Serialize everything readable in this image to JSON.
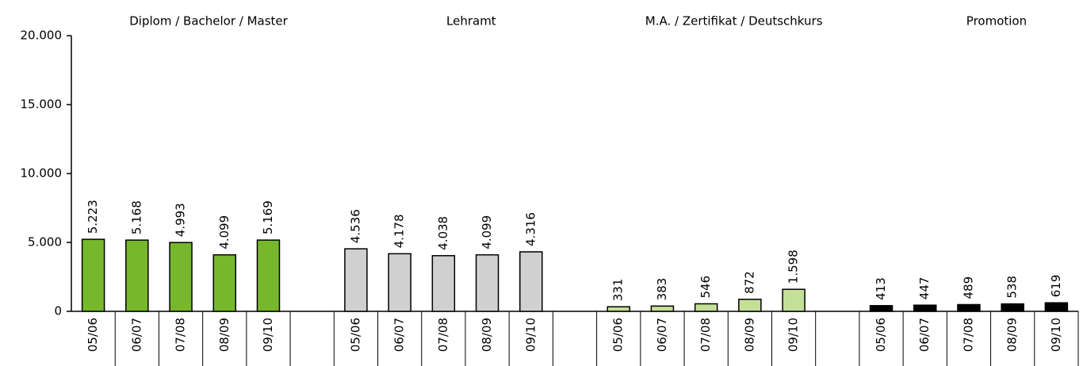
{
  "chart_data": {
    "type": "bar",
    "ylim": [
      0,
      20000
    ],
    "yticks": [
      0,
      {
        "value": 5000,
        "label": "5.000"
      },
      {
        "value": 10000,
        "label": "10.000"
      },
      {
        "value": 15000,
        "label": "15.000"
      },
      {
        "value": 20000,
        "label": "20.000"
      }
    ],
    "groups": [
      {
        "name": "Diplom / Bachelor / Master",
        "color": "#76b82a",
        "categories": [
          "05/06",
          "06/07",
          "07/08",
          "08/09",
          "09/10"
        ],
        "values": [
          5223,
          5168,
          4993,
          4099,
          5169
        ],
        "value_labels": [
          "5.223",
          "5.168",
          "4.993",
          "4.099",
          "5.169"
        ]
      },
      {
        "name": "Lehramt",
        "color": "#d0d0d0",
        "categories": [
          "05/06",
          "06/07",
          "07/08",
          "08/09",
          "09/10"
        ],
        "values": [
          4536,
          4178,
          4038,
          4099,
          4316
        ],
        "value_labels": [
          "4.536",
          "4.178",
          "4.038",
          "4.099",
          "4.316"
        ]
      },
      {
        "name": "M.A. / Zertifikat / Deutschkurs",
        "color": "#c3df98",
        "categories": [
          "05/06",
          "06/07",
          "07/08",
          "08/09",
          "09/10"
        ],
        "values": [
          331,
          383,
          546,
          872,
          1598
        ],
        "value_labels": [
          "331",
          "383",
          "546",
          "872",
          "1.598"
        ]
      },
      {
        "name": "Promotion",
        "color": "#000000",
        "categories": [
          "05/06",
          "06/07",
          "07/08",
          "08/09",
          "09/10"
        ],
        "values": [
          413,
          447,
          489,
          538,
          619
        ],
        "value_labels": [
          "413",
          "447",
          "489",
          "538",
          "619"
        ]
      }
    ]
  }
}
